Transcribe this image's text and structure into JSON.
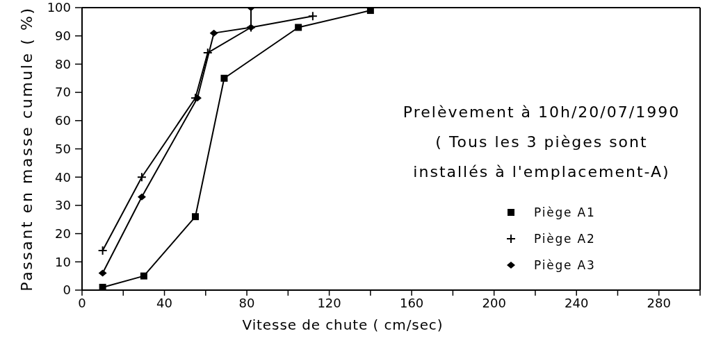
{
  "chart_data": {
    "type": "line",
    "xlabel": "Vitesse de chute ( cm/sec)",
    "ylabel": "Passant en masse cumule ( %)",
    "annotations": [
      "Prelèvement à 10h/20/07/1990",
      "( Tous les 3 pièges sont",
      "installés à l'emplacement-A)"
    ],
    "xlim": [
      0,
      300
    ],
    "ylim": [
      0,
      100
    ],
    "xticks": [
      0,
      {
        "value": 20,
        "label": null
      },
      40,
      {
        "value": 60,
        "label": null
      },
      80,
      {
        "value": 100,
        "label": null
      },
      120,
      {
        "value": 140,
        "label": null
      },
      160,
      {
        "value": 180,
        "label": null
      },
      200,
      {
        "value": 220,
        "label": null
      },
      240,
      {
        "value": 260,
        "label": null
      },
      280,
      {
        "value": 300,
        "label": null
      }
    ],
    "yticks": [
      0,
      10,
      20,
      30,
      40,
      50,
      60,
      70,
      80,
      90,
      100
    ],
    "legend": "bottom right",
    "line_style": "solid",
    "series": [
      {
        "name": "Piège A1",
        "color": "#000000",
        "marker": "square",
        "x": [
          10,
          30,
          55,
          69,
          105,
          140
        ],
        "values": [
          1,
          5,
          26,
          75,
          93,
          99
        ]
      },
      {
        "name": "Piège A2",
        "color": "#000000",
        "marker": "cross",
        "x": [
          10,
          29,
          55,
          61,
          82,
          112
        ],
        "values": [
          14,
          40,
          68,
          84,
          93,
          97
        ]
      },
      {
        "name": "Piège A3",
        "color": "#000000",
        "marker": "diamond",
        "x": [
          10,
          29,
          56,
          64,
          82,
          82
        ],
        "values": [
          6,
          33,
          68,
          91,
          93,
          100
        ]
      }
    ]
  }
}
